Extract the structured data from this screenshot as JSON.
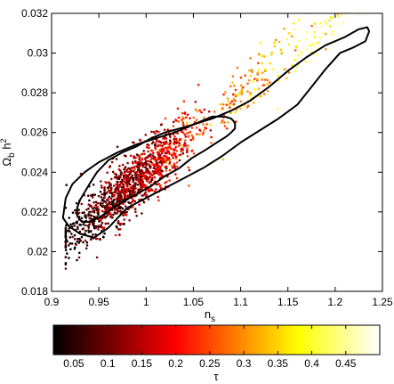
{
  "chart_data": {
    "type": "scatter",
    "title": "",
    "xlabel": "n_s",
    "ylabel": "Ω_b h²",
    "xlim": [
      0.9,
      1.25
    ],
    "ylim": [
      0.018,
      0.032
    ],
    "xticks": [
      "0.9",
      "0.95",
      "1",
      "1.05",
      "1.1",
      "1.15",
      "1.2",
      "1.25"
    ],
    "yticks": [
      "0.018",
      "0.02",
      "0.022",
      "0.024",
      "0.026",
      "0.028",
      "0.03",
      "0.032"
    ],
    "grid": false,
    "series": [
      {
        "kind": "samples",
        "trend": {
          "slope": 0.0396,
          "intercept": -0.01558,
          "approx_count": 1500
        },
        "points_sample": [
          [
            0.93,
            0.021,
            0.05
          ],
          [
            0.94,
            0.022,
            0.06
          ],
          [
            0.95,
            0.0228,
            0.08
          ],
          [
            0.96,
            0.0232,
            0.1
          ],
          [
            0.97,
            0.0232,
            0.12
          ],
          [
            0.98,
            0.0235,
            0.1
          ],
          [
            0.99,
            0.024,
            0.14
          ],
          [
            1.0,
            0.024,
            0.16
          ],
          [
            1.01,
            0.0244,
            0.18
          ],
          [
            1.02,
            0.0248,
            0.2
          ],
          [
            1.04,
            0.0253,
            0.24
          ],
          [
            1.06,
            0.0259,
            0.27
          ],
          [
            1.08,
            0.0265,
            0.3
          ],
          [
            1.1,
            0.0272,
            0.33
          ],
          [
            1.12,
            0.028,
            0.37
          ],
          [
            1.14,
            0.0286,
            0.4
          ],
          [
            1.16,
            0.0293,
            0.42
          ],
          [
            1.18,
            0.0299,
            0.44
          ],
          [
            1.2,
            0.0305,
            0.46
          ],
          [
            1.22,
            0.0309,
            0.48
          ]
        ]
      },
      {
        "kind": "contour-inner",
        "x": [
          0.93,
          0.94,
          0.948,
          0.96,
          0.975,
          0.99,
          1.005,
          1.02,
          1.035,
          1.05,
          1.06,
          1.07,
          1.083,
          1.09,
          1.094,
          1.094,
          1.09,
          1.085,
          1.075,
          1.062,
          1.048,
          1.035,
          1.02,
          1.005,
          0.99,
          0.975,
          0.962,
          0.95,
          0.94,
          0.932,
          0.927,
          0.927
        ],
        "y": [
          0.0226,
          0.0234,
          0.024,
          0.0246,
          0.025,
          0.0253,
          0.0257,
          0.026,
          0.0262,
          0.0264,
          0.0266,
          0.0268,
          0.0268,
          0.0267,
          0.0265,
          0.0262,
          0.026,
          0.0258,
          0.0255,
          0.0251,
          0.0247,
          0.0242,
          0.0238,
          0.0233,
          0.0229,
          0.0225,
          0.0221,
          0.0217,
          0.0215,
          0.0215,
          0.0218,
          0.0222
        ]
      },
      {
        "kind": "contour-outer",
        "x": [
          0.912,
          0.915,
          0.922,
          0.935,
          0.95,
          0.97,
          0.99,
          1.01,
          1.03,
          1.05,
          1.07,
          1.09,
          1.11,
          1.13,
          1.15,
          1.17,
          1.19,
          1.21,
          1.225,
          1.234,
          1.236,
          1.232,
          1.22,
          1.205,
          1.19,
          1.175,
          1.16,
          1.14,
          1.12,
          1.1,
          1.08,
          1.06,
          1.04,
          1.02,
          1.0,
          0.98,
          0.96,
          0.945,
          0.93,
          0.918
        ],
        "y": [
          0.0217,
          0.0227,
          0.0234,
          0.024,
          0.0245,
          0.025,
          0.0254,
          0.0257,
          0.026,
          0.0264,
          0.0267,
          0.0271,
          0.0276,
          0.0283,
          0.0291,
          0.0298,
          0.0304,
          0.0308,
          0.0312,
          0.0313,
          0.0311,
          0.0306,
          0.0303,
          0.03,
          0.0292,
          0.0283,
          0.0274,
          0.0267,
          0.0261,
          0.0255,
          0.0248,
          0.0242,
          0.0237,
          0.0232,
          0.0227,
          0.0222,
          0.0212,
          0.0207,
          0.0209,
          0.0213
        ]
      }
    ],
    "colorbar": {
      "label": "τ",
      "colormap": "hot",
      "range": [
        0.02,
        0.5
      ],
      "ticks": [
        "0.05",
        "0.1",
        "0.15",
        "0.2",
        "0.25",
        "0.3",
        "0.35",
        "0.4",
        "0.45"
      ]
    }
  }
}
